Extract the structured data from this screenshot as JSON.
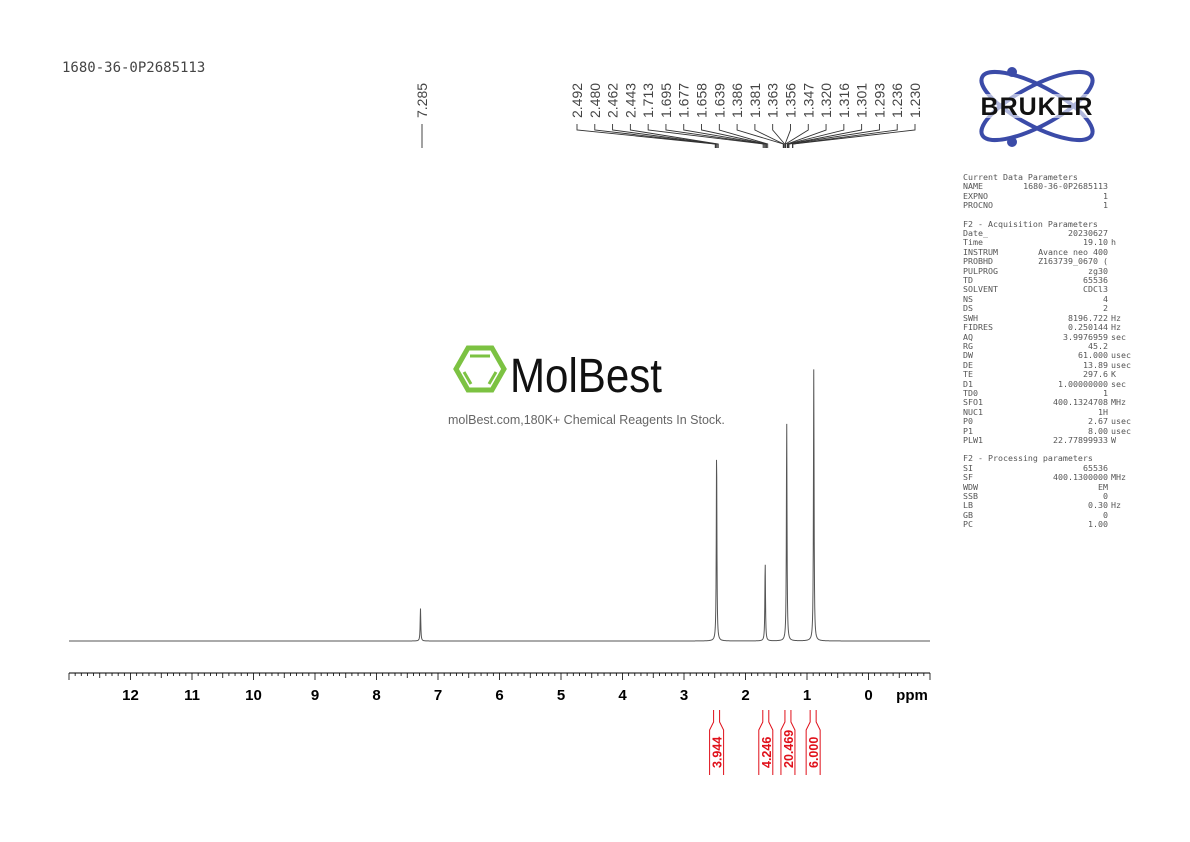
{
  "sample_title": "1680-36-0P2685113",
  "logos": {
    "bruker": {
      "text": "BRUKER",
      "color": "#3b4ba8"
    },
    "molbest": {
      "text": "MolBest",
      "tagline": "molBest.com,180K+ Chemical Reagents In Stock.",
      "color": "#7cc242"
    }
  },
  "parameters": {
    "sections": [
      {
        "title": "Current Data Parameters",
        "rows": [
          [
            "NAME",
            "1680-36-0P2685113",
            ""
          ],
          [
            "EXPNO",
            "1",
            ""
          ],
          [
            "PROCNO",
            "1",
            ""
          ]
        ]
      },
      {
        "title": "F2 - Acquisition Parameters",
        "rows": [
          [
            "Date_",
            "20230627",
            ""
          ],
          [
            "Time",
            "19.10",
            "h"
          ],
          [
            "INSTRUM",
            "Avance neo 400",
            ""
          ],
          [
            "PROBHD",
            "Z163739_0670 (",
            ""
          ],
          [
            "PULPROG",
            "zg30",
            ""
          ],
          [
            "TD",
            "65536",
            ""
          ],
          [
            "SOLVENT",
            "CDCl3",
            ""
          ],
          [
            "NS",
            "4",
            ""
          ],
          [
            "DS",
            "2",
            ""
          ],
          [
            "SWH",
            "8196.722",
            "Hz"
          ],
          [
            "FIDRES",
            "0.250144",
            "Hz"
          ],
          [
            "AQ",
            "3.9976959",
            "sec"
          ],
          [
            "RG",
            "45.2",
            ""
          ],
          [
            "DW",
            "61.000",
            "usec"
          ],
          [
            "DE",
            "13.89",
            "usec"
          ],
          [
            "TE",
            "297.6",
            "K"
          ],
          [
            "D1",
            "1.00000000",
            "sec"
          ],
          [
            "TD0",
            "1",
            ""
          ],
          [
            "SFO1",
            "400.1324708",
            "MHz"
          ],
          [
            "NUC1",
            "1H",
            ""
          ],
          [
            "P0",
            "2.67",
            "usec"
          ],
          [
            "P1",
            "8.00",
            "usec"
          ],
          [
            "PLW1",
            "22.77899933",
            "W"
          ]
        ]
      },
      {
        "title": "F2 - Processing parameters",
        "rows": [
          [
            "SI",
            "65536",
            ""
          ],
          [
            "SF",
            "400.1300000",
            "MHz"
          ],
          [
            "WDW",
            "EM",
            ""
          ],
          [
            "SSB",
            "0",
            ""
          ],
          [
            "LB",
            "0.30",
            "Hz"
          ],
          [
            "GB",
            "0",
            ""
          ],
          [
            "PC",
            "1.00",
            ""
          ]
        ]
      }
    ]
  },
  "chart_data": {
    "type": "line",
    "xlabel": "ppm",
    "xlim": [
      13,
      -1
    ],
    "x_reversed": true,
    "x_ticks": [
      12,
      11,
      10,
      9,
      8,
      7,
      6,
      5,
      4,
      3,
      2,
      1,
      0
    ],
    "x_tick_labels": [
      "12",
      "11",
      "10",
      "9",
      "8",
      "7",
      "6",
      "5",
      "4",
      "3",
      "2",
      "1",
      "0"
    ],
    "line_color": "#555555",
    "peaks": [
      {
        "ppm": 7.285,
        "relative_intensity": 0.12
      },
      {
        "ppm": 2.47,
        "relative_intensity": 0.71
      },
      {
        "ppm": 1.68,
        "relative_intensity": 0.29
      },
      {
        "ppm": 1.33,
        "relative_intensity": 0.81
      },
      {
        "ppm": 0.89,
        "relative_intensity": 1.0
      }
    ],
    "peak_label_single": "7.285",
    "peak_labels": [
      "2.492",
      "2.480",
      "2.462",
      "2.443",
      "1.713",
      "1.695",
      "1.677",
      "1.658",
      "1.639",
      "1.386",
      "1.381",
      "1.363",
      "1.356",
      "1.347",
      "1.320",
      "1.316",
      "1.301",
      "1.293",
      "1.236",
      "1.230"
    ],
    "integrals": [
      {
        "ppm": 2.47,
        "value": "3.944"
      },
      {
        "ppm": 1.67,
        "value": "4.246"
      },
      {
        "ppm": 1.31,
        "value": "20.469"
      },
      {
        "ppm": 0.9,
        "value": "6.000"
      }
    ],
    "integral_color": "#e0101a"
  }
}
